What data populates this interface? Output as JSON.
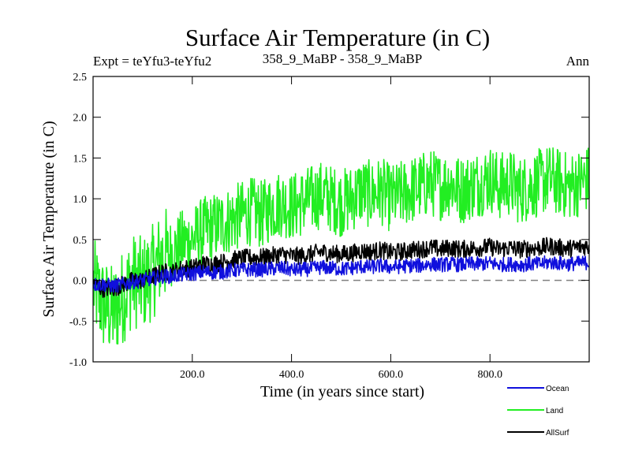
{
  "chart_data": {
    "type": "line",
    "title": "Surface Air Temperature (in C)",
    "subtitle_left": "Expt = teYfu3-teYfu2",
    "subtitle_center": "358_9_MaBP - 358_9_MaBP",
    "subtitle_right": "Ann",
    "xlabel": "Time (in years since start)",
    "ylabel": "Surface Air Temperature (in C)",
    "xlim": [
      0,
      1000
    ],
    "ylim": [
      -1.0,
      2.5
    ],
    "x_ticks": [
      200,
      400,
      600,
      800
    ],
    "x_tick_labels": [
      "200.0",
      "400.0",
      "600.0",
      "800.0"
    ],
    "y_ticks": [
      -1.0,
      -0.5,
      0.0,
      0.5,
      1.0,
      1.5,
      2.0,
      2.5
    ],
    "y_tick_labels": [
      "-1.0",
      "-0.5",
      "0.0",
      "0.5",
      "1.0",
      "1.5",
      "2.0",
      "2.5"
    ],
    "reference_line": {
      "y": 0.0,
      "style": "dashed",
      "color": "#808080"
    },
    "series": [
      {
        "name": "Land",
        "color": "#22ee22",
        "x": [
          0,
          20,
          40,
          60,
          80,
          100,
          120,
          140,
          160,
          180,
          200,
          220,
          240,
          260,
          280,
          300,
          320,
          340,
          360,
          380,
          400,
          420,
          440,
          460,
          480,
          500,
          520,
          540,
          560,
          580,
          600,
          620,
          640,
          660,
          680,
          700,
          720,
          740,
          760,
          780,
          800,
          820,
          840,
          860,
          880,
          900,
          920,
          940,
          960,
          980,
          1000
        ],
        "values": [
          -0.05,
          -0.3,
          -0.4,
          -0.2,
          0.0,
          -0.05,
          0.1,
          0.3,
          0.35,
          0.45,
          0.5,
          0.6,
          0.65,
          0.7,
          0.75,
          0.8,
          0.85,
          0.8,
          0.9,
          0.95,
          0.9,
          0.95,
          1.0,
          1.05,
          1.0,
          0.95,
          1.0,
          1.1,
          1.05,
          1.1,
          1.0,
          1.05,
          1.1,
          1.15,
          1.2,
          1.15,
          1.2,
          1.1,
          1.15,
          1.2,
          1.25,
          1.15,
          1.2,
          1.1,
          1.15,
          1.2,
          1.25,
          1.2,
          1.15,
          1.2,
          1.25
        ]
      },
      {
        "name": "AllSurf",
        "color": "#000000",
        "x": [
          0,
          20,
          40,
          60,
          80,
          100,
          120,
          140,
          160,
          180,
          200,
          220,
          240,
          260,
          280,
          300,
          320,
          340,
          360,
          380,
          400,
          420,
          440,
          460,
          480,
          500,
          520,
          540,
          560,
          580,
          600,
          620,
          640,
          660,
          680,
          700,
          720,
          740,
          760,
          780,
          800,
          820,
          840,
          860,
          880,
          900,
          920,
          940,
          960,
          980,
          1000
        ],
        "values": [
          -0.05,
          -0.1,
          -0.1,
          -0.05,
          0.0,
          0.0,
          0.05,
          0.1,
          0.1,
          0.15,
          0.15,
          0.2,
          0.2,
          0.22,
          0.25,
          0.27,
          0.28,
          0.28,
          0.3,
          0.32,
          0.3,
          0.3,
          0.32,
          0.35,
          0.33,
          0.32,
          0.33,
          0.36,
          0.35,
          0.37,
          0.34,
          0.35,
          0.37,
          0.38,
          0.4,
          0.38,
          0.4,
          0.38,
          0.39,
          0.4,
          0.41,
          0.38,
          0.4,
          0.38,
          0.39,
          0.4,
          0.42,
          0.4,
          0.39,
          0.41,
          0.42
        ]
      },
      {
        "name": "Ocean",
        "color": "#1010dd",
        "x": [
          0,
          20,
          40,
          60,
          80,
          100,
          120,
          140,
          160,
          180,
          200,
          220,
          240,
          260,
          280,
          300,
          320,
          340,
          360,
          380,
          400,
          420,
          440,
          460,
          480,
          500,
          520,
          540,
          560,
          580,
          600,
          620,
          640,
          660,
          680,
          700,
          720,
          740,
          760,
          780,
          800,
          820,
          840,
          860,
          880,
          900,
          920,
          940,
          960,
          980,
          1000
        ],
        "values": [
          -0.05,
          -0.05,
          -0.07,
          -0.05,
          -0.02,
          0.0,
          0.02,
          0.05,
          0.05,
          0.07,
          0.08,
          0.1,
          0.1,
          0.1,
          0.12,
          0.13,
          0.13,
          0.13,
          0.14,
          0.15,
          0.13,
          0.13,
          0.14,
          0.16,
          0.15,
          0.14,
          0.15,
          0.17,
          0.16,
          0.18,
          0.16,
          0.17,
          0.18,
          0.18,
          0.2,
          0.19,
          0.2,
          0.19,
          0.2,
          0.2,
          0.21,
          0.19,
          0.2,
          0.19,
          0.2,
          0.2,
          0.22,
          0.21,
          0.2,
          0.21,
          0.22
        ]
      }
    ],
    "legend": {
      "placement": "bottom-right",
      "entries": [
        "Ocean",
        "Land",
        "AllSurf"
      ]
    }
  }
}
